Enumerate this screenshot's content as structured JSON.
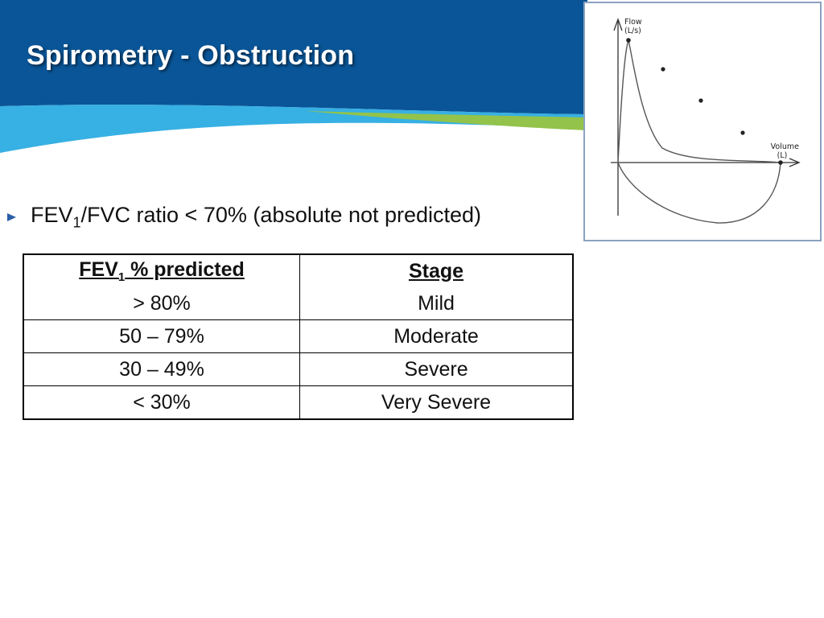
{
  "slide": {
    "title": "Spirometry - Obstruction",
    "bullet": {
      "pre": "FEV",
      "sub": "1",
      "post": "/FVC ratio < 70% (absolute not predicted)"
    },
    "colors": {
      "header_blue": "#0a5597",
      "accent_light_blue": "#37b0e3",
      "accent_green": "#93c34a",
      "bullet_blue": "#2a5fa8"
    }
  },
  "table": {
    "headers": [
      {
        "pre": "FEV",
        "sub": "1",
        "post": " % predicted"
      },
      {
        "text": "Stage"
      }
    ],
    "rows": [
      [
        "> 80%",
        "Mild"
      ],
      [
        "50 – 79%",
        "Moderate"
      ],
      [
        "30 – 49%",
        "Severe"
      ],
      [
        "< 30%",
        "Very Severe"
      ]
    ]
  },
  "chart_data": {
    "type": "line",
    "title": "",
    "ylabel_line1": "Flow",
    "ylabel_line2": "(L/s)",
    "xlabel_line1": "Volume",
    "xlabel_line2": "(L)",
    "grid": false,
    "legend": "none",
    "curve_color": "#555555",
    "marker_color": "#222222"
  }
}
